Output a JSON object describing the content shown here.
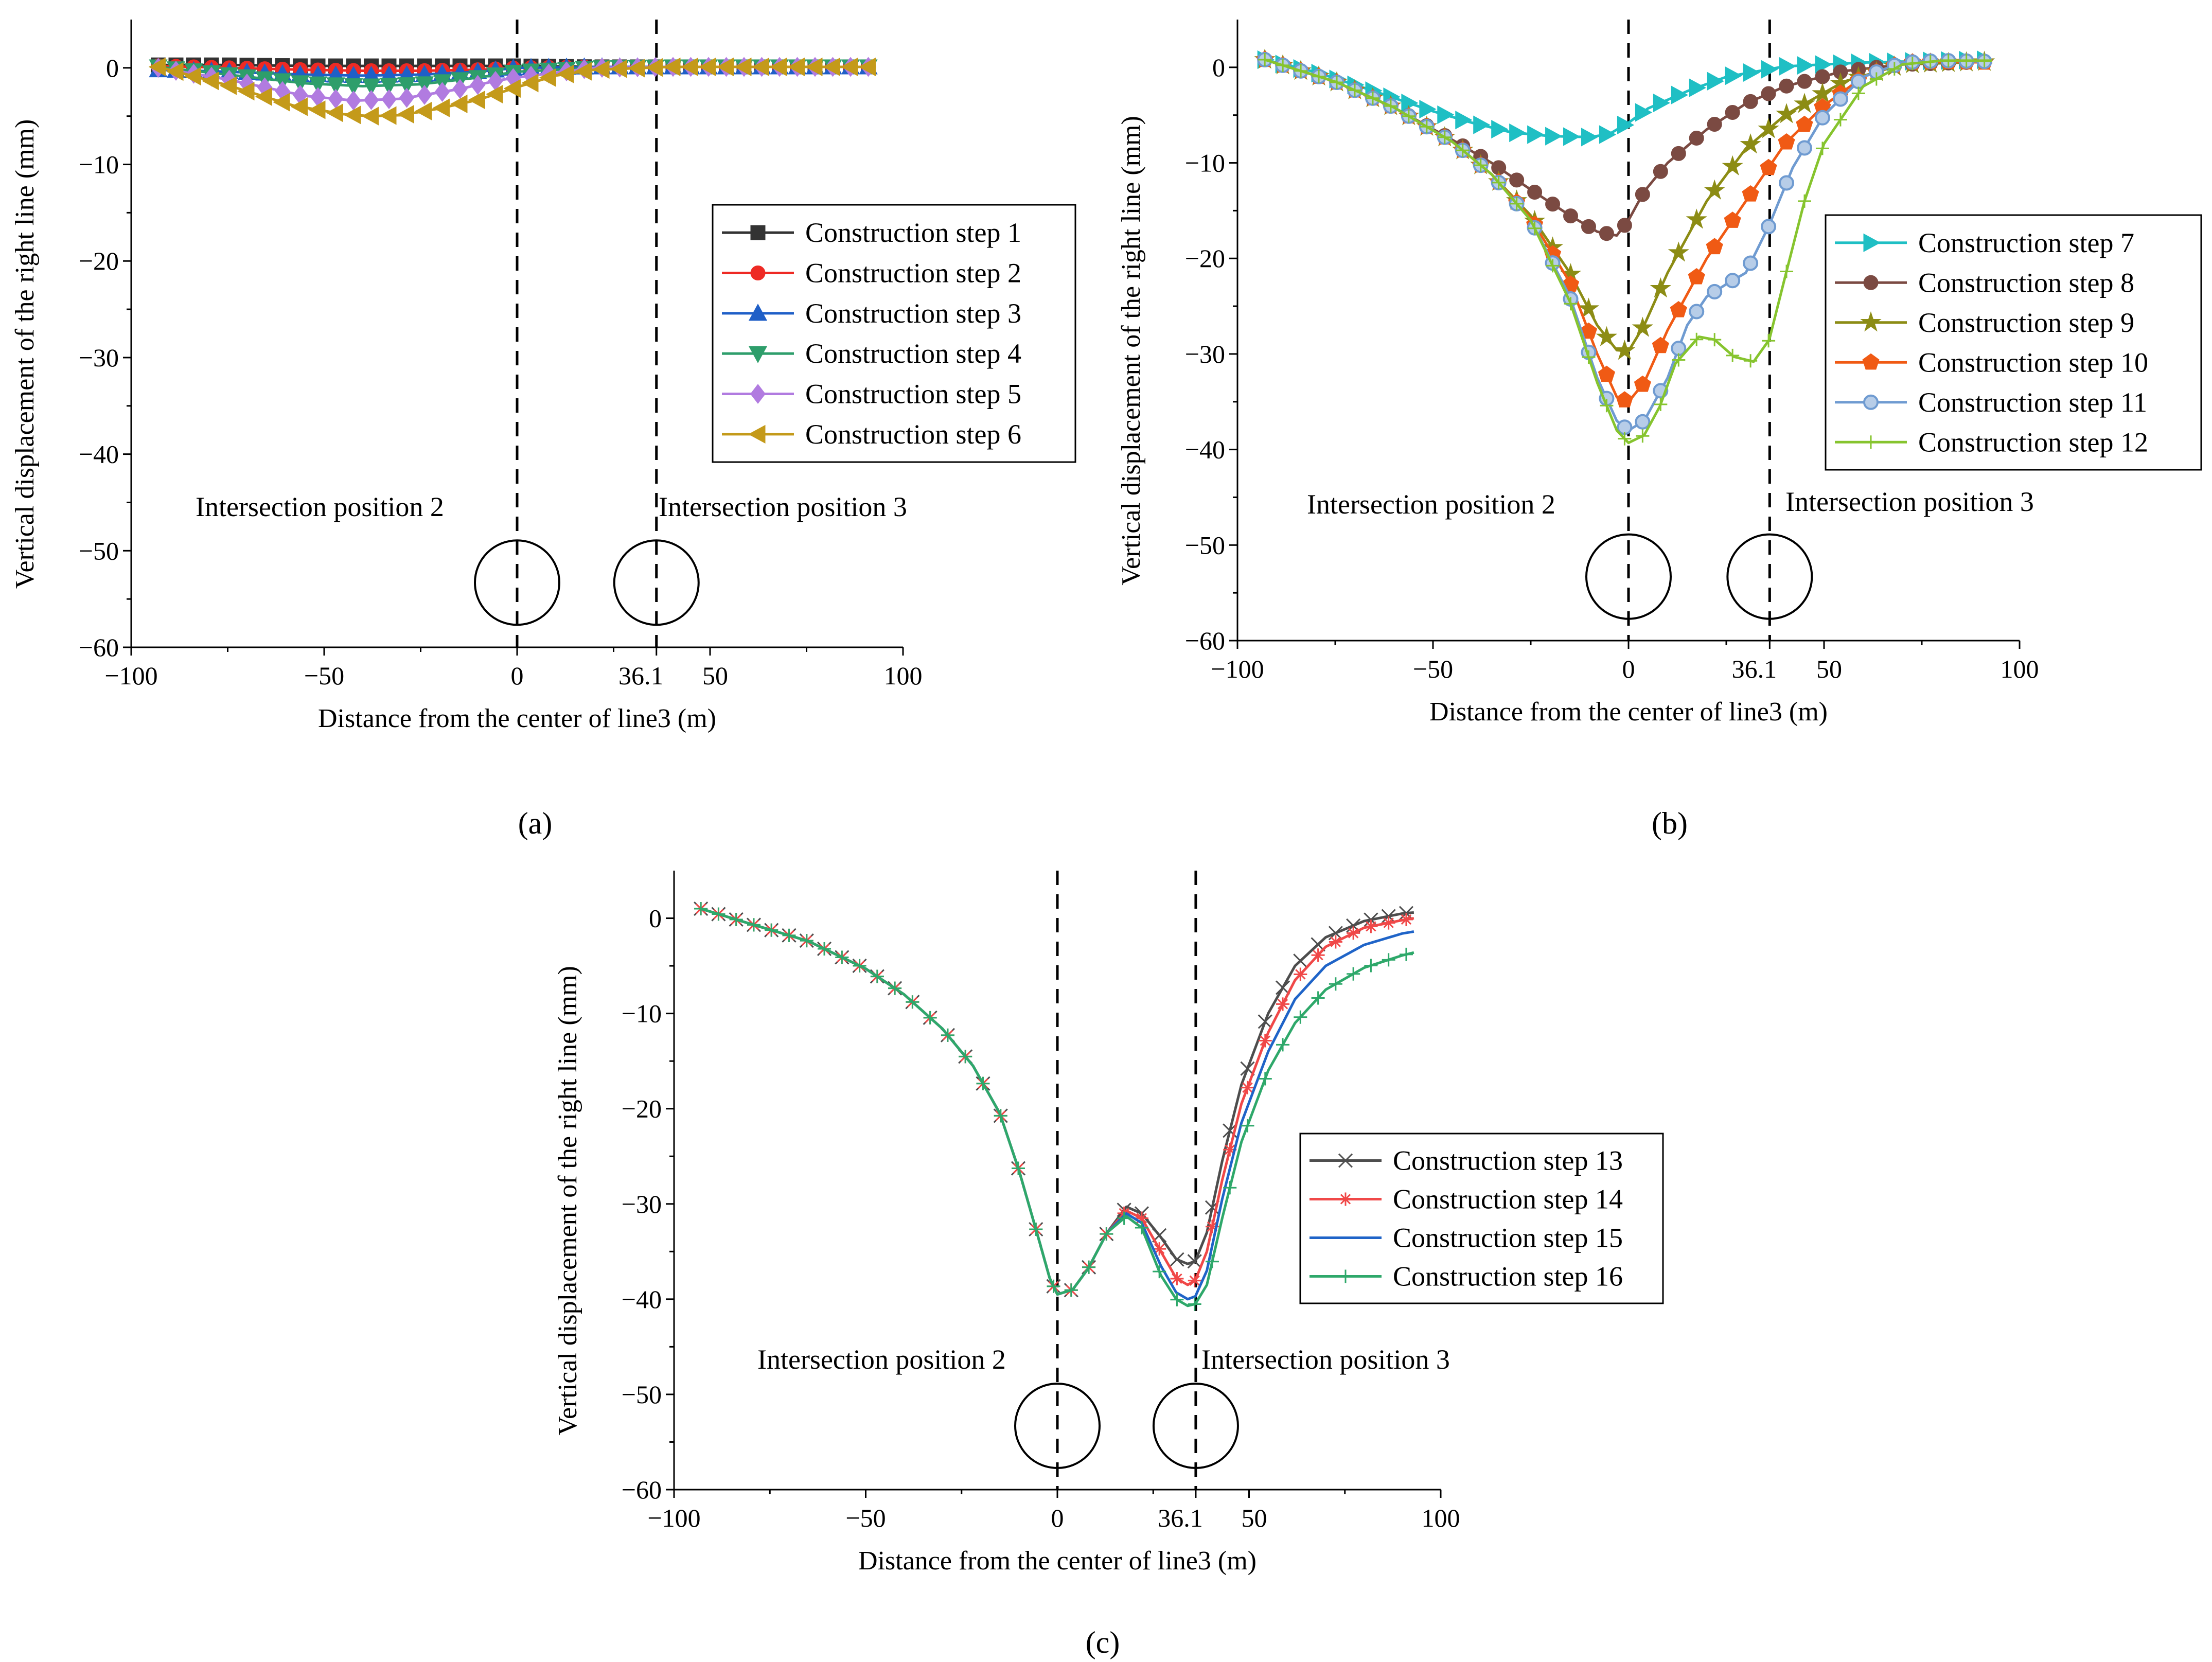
{
  "figure": {
    "panel_labels": [
      "(a)",
      "(b)",
      "(c)"
    ]
  },
  "chart_data": [
    {
      "panel": "(a)",
      "type": "line",
      "xlabel": "Distance from the center of line3 (m)",
      "ylabel": "Vertical displacement of the right line (mm)",
      "xlim": [
        -100,
        100
      ],
      "ylim": [
        -60,
        5
      ],
      "xticks": [
        -100,
        -50,
        0,
        36.1,
        50,
        100
      ],
      "xtick_labels": [
        "−100",
        "−50",
        "0",
        "36.1",
        "50",
        "100"
      ],
      "yticks": [
        0,
        -10,
        -20,
        -30,
        -40,
        -50,
        -60
      ],
      "ytick_labels": [
        "0",
        "−10",
        "−20",
        "−30",
        "−40",
        "−50",
        "−60"
      ],
      "grid": false,
      "legend": "right",
      "annotations": [
        "Intersection position 2",
        "Intersection position 3"
      ],
      "vlines": [
        0,
        36.1
      ],
      "circles": [
        {
          "x": 0,
          "y": -53.3
        },
        {
          "x": 36.1,
          "y": -53.3
        }
      ],
      "series": [
        {
          "name": "Construction step 1",
          "color": "#333333",
          "marker": "square",
          "x": [
            -93,
            -75,
            -55,
            -40,
            -25,
            -10,
            0,
            20,
            40,
            60,
            80,
            93
          ],
          "y": [
            0.3,
            0.3,
            0.2,
            0.2,
            0.2,
            0.2,
            0.2,
            0.1,
            0.1,
            0.1,
            0.1,
            0.1
          ]
        },
        {
          "name": "Construction step 2",
          "color": "#ee2a24",
          "marker": "circle",
          "x": [
            -93,
            -75,
            -55,
            -40,
            -25,
            -10,
            0,
            20,
            40,
            60,
            80,
            93
          ],
          "y": [
            0.2,
            0.0,
            -0.2,
            -0.3,
            -0.3,
            -0.2,
            0.0,
            0.1,
            0.1,
            0.1,
            0.1,
            0.1
          ]
        },
        {
          "name": "Construction step 3",
          "color": "#1f5fc7",
          "marker": "triangle-up",
          "x": [
            -93,
            -75,
            -55,
            -40,
            -25,
            -10,
            0,
            20,
            40,
            60,
            80,
            93
          ],
          "y": [
            -0.2,
            -0.4,
            -0.7,
            -0.8,
            -0.7,
            -0.4,
            0.0,
            0.1,
            0.1,
            0.1,
            0.1,
            0.1
          ]
        },
        {
          "name": "Construction step 4",
          "color": "#2e9e6b",
          "marker": "triangle-down",
          "x": [
            -93,
            -75,
            -55,
            -40,
            -25,
            -10,
            0,
            20,
            40,
            60,
            80,
            93
          ],
          "y": [
            0.1,
            -0.7,
            -1.6,
            -1.9,
            -1.7,
            -1.0,
            -0.4,
            0.0,
            0.1,
            0.1,
            0.1,
            0.1
          ]
        },
        {
          "name": "Construction step 5",
          "color": "#b17be0",
          "marker": "diamond",
          "x": [
            -93,
            -75,
            -55,
            -42,
            -30,
            -15,
            -5,
            0,
            20,
            40,
            60,
            80,
            93
          ],
          "y": [
            0.0,
            -1.2,
            -2.9,
            -3.4,
            -3.2,
            -2.2,
            -1.3,
            -1.0,
            0.0,
            0.1,
            0.1,
            0.1,
            0.1
          ]
        },
        {
          "name": "Construction step 6",
          "color": "#c49a1a",
          "marker": "triangle-left",
          "x": [
            -93,
            -75,
            -58,
            -45,
            -38,
            -30,
            -20,
            -10,
            0,
            10,
            20,
            40,
            60,
            80,
            93
          ],
          "y": [
            0.1,
            -1.8,
            -3.9,
            -4.8,
            -5.0,
            -4.9,
            -4.2,
            -3.3,
            -2.0,
            -0.8,
            -0.2,
            0.1,
            0.1,
            0.1,
            0.1
          ]
        }
      ]
    },
    {
      "panel": "(b)",
      "type": "line",
      "xlabel": "Distance from the center of line3 (m)",
      "ylabel": "Vertical displacement of the right line (mm)",
      "xlim": [
        -100,
        100
      ],
      "ylim": [
        -60,
        5
      ],
      "xticks": [
        -100,
        -50,
        0,
        36.1,
        50,
        100
      ],
      "xtick_labels": [
        "−100",
        "−50",
        "0",
        "36.1",
        "50",
        "100"
      ],
      "yticks": [
        0,
        -10,
        -20,
        -30,
        -40,
        -50,
        -60
      ],
      "ytick_labels": [
        "0",
        "−10",
        "−20",
        "−30",
        "−40",
        "−50",
        "−60"
      ],
      "grid": false,
      "legend": "right",
      "annotations": [
        "Intersection position 2",
        "Intersection position 3"
      ],
      "vlines": [
        0,
        36.1
      ],
      "circles": [
        {
          "x": 0,
          "y": -53.3
        },
        {
          "x": 36.1,
          "y": -53.3
        }
      ],
      "series": [
        {
          "name": "Construction step 7",
          "color": "#1fbfc4",
          "marker": "triangle-right",
          "x": [
            -93,
            -80,
            -65,
            -50,
            -40,
            -30,
            -20,
            -10,
            -5,
            0,
            5,
            15,
            25,
            40,
            60,
            80,
            93
          ],
          "y": [
            0.8,
            -0.5,
            -2.5,
            -4.6,
            -5.8,
            -6.8,
            -7.2,
            -7.3,
            -7.0,
            -5.8,
            -4.3,
            -2.5,
            -1.0,
            0.1,
            0.5,
            0.7,
            0.8
          ]
        },
        {
          "name": "Construction step 8",
          "color": "#7b4a42",
          "marker": "circle",
          "x": [
            -93,
            -75,
            -60,
            -45,
            -35,
            -25,
            -15,
            -8,
            -3,
            0,
            4,
            10,
            20,
            30,
            40,
            55,
            70,
            93
          ],
          "y": [
            0.8,
            -1.5,
            -4.2,
            -7.6,
            -10.0,
            -12.8,
            -15.5,
            -17.2,
            -17.6,
            -16.0,
            -13.0,
            -10.0,
            -6.5,
            -3.8,
            -2.0,
            -0.4,
            0.3,
            0.6
          ]
        },
        {
          "name": "Construction step 9",
          "color": "#8c8c14",
          "marker": "star",
          "x": [
            -93,
            -75,
            -60,
            -45,
            -35,
            -25,
            -15,
            -8,
            -3,
            0,
            4,
            10,
            20,
            30,
            40,
            55,
            70,
            93
          ],
          "y": [
            0.8,
            -1.5,
            -4.2,
            -7.8,
            -11.2,
            -15.5,
            -21.5,
            -27.0,
            -29.6,
            -29.7,
            -27.0,
            -21.5,
            -14.0,
            -8.5,
            -5.0,
            -1.5,
            0.3,
            0.6
          ]
        },
        {
          "name": "Construction step 10",
          "color": "#f05a14",
          "marker": "pentagon",
          "x": [
            -93,
            -75,
            -60,
            -45,
            -35,
            -25,
            -15,
            -8,
            -3,
            0,
            4,
            10,
            20,
            30,
            40,
            50,
            60,
            70,
            80,
            93
          ],
          "y": [
            0.8,
            -1.5,
            -4.2,
            -7.8,
            -11.2,
            -15.8,
            -22.5,
            -30.0,
            -34.5,
            -35.0,
            -33.0,
            -27.5,
            -20.0,
            -14.0,
            -8.0,
            -4.0,
            -1.0,
            0.5,
            0.6,
            0.5
          ]
        },
        {
          "name": "Construction step 11",
          "color": "#6f9bd1",
          "marker": "ring",
          "x": [
            -93,
            -75,
            -60,
            -45,
            -35,
            -25,
            -15,
            -8,
            -3,
            0,
            4,
            10,
            15,
            20,
            25,
            30,
            36,
            42,
            50,
            60,
            70,
            80,
            93
          ],
          "y": [
            0.8,
            -1.5,
            -4.2,
            -7.8,
            -11.2,
            -16.0,
            -24.0,
            -32.5,
            -37.0,
            -38.0,
            -37.0,
            -32.5,
            -27.0,
            -24.0,
            -22.7,
            -21.5,
            -16.5,
            -10.5,
            -5.0,
            -1.0,
            0.5,
            0.7,
            0.6
          ]
        },
        {
          "name": "Construction step 12",
          "color": "#86c42e",
          "marker": "plus",
          "x": [
            -93,
            -75,
            -60,
            -45,
            -35,
            -25,
            -15,
            -8,
            -3,
            0,
            4,
            8,
            12,
            18,
            22,
            27,
            32,
            36,
            40,
            45,
            50,
            60,
            70,
            80,
            93
          ],
          "y": [
            0.8,
            -1.5,
            -4.2,
            -7.8,
            -11.2,
            -16.0,
            -24.5,
            -33.0,
            -38.0,
            -39.3,
            -38.5,
            -35.5,
            -31.0,
            -28.2,
            -28.5,
            -30.3,
            -30.8,
            -28.5,
            -22.0,
            -14.0,
            -8.0,
            -2.0,
            0.3,
            0.7,
            0.7
          ]
        }
      ]
    },
    {
      "panel": "(c)",
      "type": "line",
      "xlabel": "Distance from the center of line3 (m)",
      "ylabel": "Vertical displacement of the right line (mm)",
      "xlim": [
        -100,
        100
      ],
      "ylim": [
        -60,
        5
      ],
      "xticks": [
        -100,
        -50,
        0,
        36.1,
        50,
        100
      ],
      "xtick_labels": [
        "−100",
        "−50",
        "0",
        "36.1",
        "50",
        "100"
      ],
      "yticks": [
        0,
        -10,
        -20,
        -30,
        -40,
        -50,
        -60
      ],
      "ytick_labels": [
        "0",
        "−10",
        "−20",
        "−30",
        "−40",
        "−50",
        "−60"
      ],
      "grid": false,
      "legend": "right",
      "annotations": [
        "Intersection position 2",
        "Intersection position 3"
      ],
      "vlines": [
        0,
        36.1
      ],
      "circles": [
        {
          "x": 0,
          "y": -53.3
        },
        {
          "x": 36.1,
          "y": -53.3
        }
      ],
      "series": [
        {
          "name": "Construction step 13",
          "color": "#4d4d4d",
          "marker": "x",
          "x": [
            -93,
            -80,
            -65,
            -50,
            -40,
            -30,
            -22,
            -15,
            -10,
            -5,
            -2,
            0,
            4,
            8,
            13,
            18,
            22,
            27,
            31,
            34,
            36,
            39,
            43,
            48,
            55,
            62,
            70,
            80,
            90,
            93
          ],
          "y": [
            1.0,
            -0.6,
            -2.4,
            -5.3,
            -8.0,
            -11.6,
            -15.5,
            -20.5,
            -26.5,
            -33.5,
            -37.8,
            -39.5,
            -39.0,
            -36.8,
            -33.0,
            -30.3,
            -31.0,
            -33.5,
            -35.8,
            -36.3,
            -36.0,
            -33.0,
            -25.5,
            -17.5,
            -10.0,
            -5.0,
            -2.0,
            -0.3,
            0.5,
            0.6
          ]
        },
        {
          "name": "Construction step 14",
          "color": "#f04848",
          "marker": "asterisk",
          "x": [
            -93,
            -80,
            -65,
            -50,
            -40,
            -30,
            -22,
            -15,
            -10,
            -5,
            -2,
            0,
            4,
            8,
            13,
            18,
            22,
            27,
            31,
            34,
            36,
            39,
            43,
            48,
            55,
            62,
            70,
            80,
            90,
            93
          ],
          "y": [
            1.0,
            -0.6,
            -2.4,
            -5.3,
            -8.0,
            -11.6,
            -15.5,
            -20.5,
            -26.5,
            -33.5,
            -37.8,
            -39.5,
            -39.0,
            -36.8,
            -33.0,
            -30.7,
            -31.5,
            -35.0,
            -37.8,
            -38.5,
            -38.0,
            -35.0,
            -27.5,
            -19.5,
            -12.0,
            -6.5,
            -3.0,
            -1.0,
            -0.2,
            0.0
          ]
        },
        {
          "name": "Construction step 15",
          "color": "#1f64c8",
          "marker": "none",
          "x": [
            -93,
            -80,
            -65,
            -50,
            -40,
            -30,
            -22,
            -15,
            -10,
            -5,
            -2,
            0,
            4,
            8,
            13,
            18,
            22,
            27,
            31,
            34,
            36,
            39,
            43,
            48,
            55,
            62,
            70,
            80,
            90,
            93
          ],
          "y": [
            1.0,
            -0.6,
            -2.4,
            -5.3,
            -8.0,
            -11.6,
            -15.5,
            -20.5,
            -26.5,
            -33.5,
            -37.8,
            -39.5,
            -39.0,
            -36.8,
            -33.0,
            -31.0,
            -32.0,
            -36.5,
            -39.3,
            -40.0,
            -39.7,
            -37.0,
            -29.5,
            -21.5,
            -14.0,
            -8.5,
            -5.0,
            -2.8,
            -1.6,
            -1.4
          ]
        },
        {
          "name": "Construction step 16",
          "color": "#2ea86a",
          "marker": "plus",
          "x": [
            -93,
            -80,
            -65,
            -50,
            -40,
            -30,
            -22,
            -15,
            -10,
            -5,
            -2,
            0,
            4,
            8,
            13,
            18,
            22,
            27,
            31,
            34,
            36,
            39,
            43,
            48,
            55,
            62,
            70,
            80,
            90,
            93
          ],
          "y": [
            1.0,
            -0.6,
            -2.4,
            -5.3,
            -8.0,
            -11.6,
            -15.5,
            -20.5,
            -26.5,
            -33.5,
            -37.8,
            -39.5,
            -39.0,
            -36.8,
            -33.0,
            -31.3,
            -32.5,
            -37.5,
            -40.0,
            -40.7,
            -40.5,
            -38.5,
            -31.5,
            -23.5,
            -16.0,
            -11.0,
            -7.5,
            -5.2,
            -3.9,
            -3.6
          ]
        }
      ]
    }
  ]
}
